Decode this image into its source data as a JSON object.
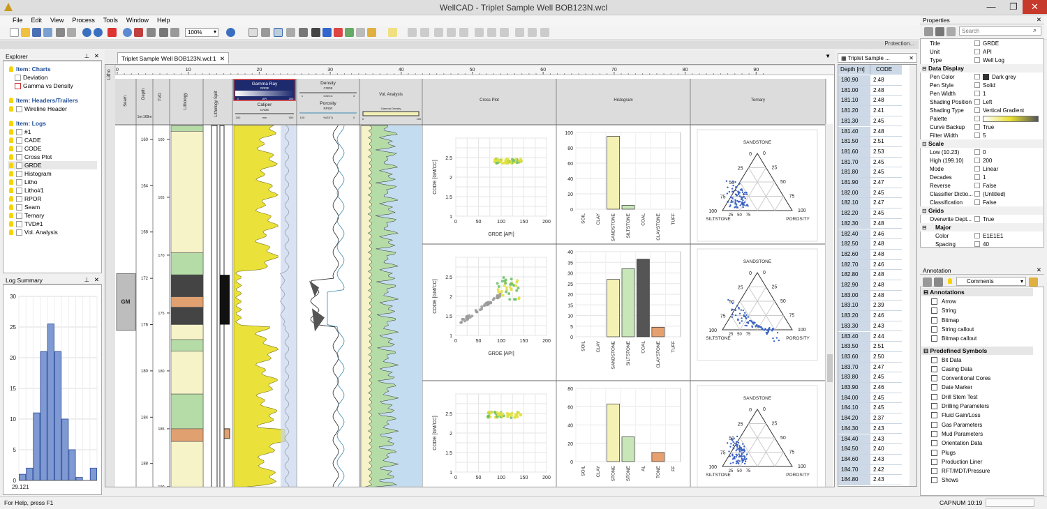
{
  "app": {
    "title": "WellCAD - Triplet Sample Well BOB123N.wcl",
    "minimize": "—",
    "maximize": "❐",
    "close": "✕"
  },
  "menu": [
    "File",
    "Edit",
    "View",
    "Process",
    "Tools",
    "Window",
    "Help"
  ],
  "toolbar": {
    "zoom": "100%"
  },
  "protection": "Protection...",
  "explorer": {
    "title": "Explorer",
    "charts_header": "Item: Charts",
    "charts": [
      "Deviation",
      "Gamma vs Density"
    ],
    "headers_header": "Item: Headers/Trailers",
    "headers": [
      "Wireline Header"
    ],
    "logs_header": "Item: Logs",
    "logs": [
      "#1",
      "CADE",
      "CODE",
      "Cross Plot",
      "GRDE",
      "Histogram",
      "Litho",
      "Litho#1",
      "RPOR",
      "Seam",
      "Ternary",
      "TVD#1",
      "Vol. Analysis"
    ]
  },
  "log_summary": {
    "title": "Log Summary",
    "yticks": [
      "30",
      "25",
      "20",
      "15",
      "10",
      "5",
      "0"
    ],
    "xlabel": "29.121",
    "bars": [
      1,
      2,
      11,
      21,
      25.5,
      21,
      10,
      5,
      0.5,
      0,
      2
    ]
  },
  "doc_tab": {
    "label": "Triplet Sample Well BOB123N.wcl:1",
    "close": "✕"
  },
  "ruler": {
    "ticks": [
      "0",
      "10",
      "20",
      "30",
      "40",
      "50",
      "60",
      "70",
      "80",
      "90"
    ]
  },
  "track_headers": {
    "seam": "Seam",
    "depth": "Depth",
    "depth_unit": "1m:169m",
    "tvd": "TVD",
    "lithology": "Lithology",
    "litho_split": "Lithology Split",
    "gamma_ray": "Gamma Ray",
    "gamma_sub": "GRDE",
    "gamma_range": [
      "0",
      "API",
      "200"
    ],
    "caliper": "Caliper",
    "caliper_sub": "CADE",
    "caliper_range": [
      "300",
      "mm",
      "500"
    ],
    "density": "Density",
    "density_sub": "CODE",
    "density_range": [
      "1",
      "GM/CC",
      "3"
    ],
    "porosity": "Porosity",
    "porosity_sub": "RPOR",
    "porosity_range": [
      "100",
      "%(SST)",
      "0"
    ],
    "vol_analysis": "Vol. Analysis",
    "vol_sub": "Gamma Density",
    "vol_range": [
      "0",
      "100"
    ],
    "cross_plot": "Cross Plot",
    "histogram": "Histogram",
    "ternary": "Ternary",
    "side_label": "Litho"
  },
  "depth_ticks": [
    "160",
    "164",
    "168",
    "172",
    "176",
    "180",
    "184",
    "188"
  ],
  "tvd_ticks": [
    "160",
    "165",
    "170",
    "175",
    "180",
    "185",
    "190"
  ],
  "seam_label": "GM",
  "chart_data": [
    {
      "type": "scatter",
      "xlabel": "GRDE [API]",
      "ylabel": "CODE [GM/CC]",
      "xlim": [
        0,
        200
      ],
      "ylim": [
        1,
        3
      ],
      "xticks": [
        "0",
        "50",
        "100",
        "150",
        "200"
      ],
      "yticks": [
        "1",
        "1.5",
        "2",
        "2.5"
      ]
    },
    {
      "type": "bar",
      "ylim": [
        0,
        100
      ],
      "categories": [
        "SOIL",
        "CLAY",
        "SANDSTONE",
        "SILTSTONE",
        "COAL",
        "CLAYSTONE",
        "TUFF"
      ],
      "values": [
        0,
        0,
        95,
        5,
        0,
        0,
        0
      ],
      "yticks": [
        "100",
        "80",
        "60",
        "40",
        "20",
        "0"
      ]
    },
    {
      "type": "ternary",
      "top": "SANDSTONE",
      "left": "SILTSTONE",
      "right": "POROSITY",
      "ticks": [
        "0",
        "25",
        "50",
        "75",
        "100"
      ]
    },
    {
      "type": "bar",
      "ylim": [
        0,
        40
      ],
      "categories": [
        "SOIL",
        "CLAY",
        "SANDSTONE",
        "SILTSTONE",
        "COAL",
        "CLAYSTONE",
        "TUFF"
      ],
      "values": [
        0,
        0,
        27,
        32,
        36.5,
        4.5,
        0
      ],
      "yticks": [
        "40",
        "35",
        "30",
        "25",
        "20",
        "15",
        "10",
        "5",
        "0"
      ]
    },
    {
      "type": "bar",
      "ylim": [
        0,
        80
      ],
      "categories": [
        "SOIL",
        "CLAY",
        "STONE",
        "STONE",
        "AL",
        "TONE",
        "FF"
      ],
      "values": [
        0,
        0,
        63,
        27,
        0,
        10,
        0
      ],
      "yticks": [
        "80",
        "60",
        "40",
        "20",
        "0"
      ]
    }
  ],
  "data_table": {
    "tab": "Triplet Sample ...",
    "close": "✕",
    "col1": "Depth [m]",
    "col2": "CODE",
    "rows": [
      [
        "180.90",
        "2.48"
      ],
      [
        "181.00",
        "2.48"
      ],
      [
        "181.10",
        "2.48"
      ],
      [
        "181.20",
        "2.41"
      ],
      [
        "181.30",
        "2.45"
      ],
      [
        "181.40",
        "2.48"
      ],
      [
        "181.50",
        "2.51"
      ],
      [
        "181.60",
        "2.53"
      ],
      [
        "181.70",
        "2.45"
      ],
      [
        "181.80",
        "2.45"
      ],
      [
        "181.90",
        "2.47"
      ],
      [
        "182.00",
        "2.45"
      ],
      [
        "182.10",
        "2.47"
      ],
      [
        "182.20",
        "2.45"
      ],
      [
        "182.30",
        "2.48"
      ],
      [
        "182.40",
        "2.46"
      ],
      [
        "182.50",
        "2.48"
      ],
      [
        "182.60",
        "2.48"
      ],
      [
        "182.70",
        "2.46"
      ],
      [
        "182.80",
        "2.48"
      ],
      [
        "182.90",
        "2.48"
      ],
      [
        "183.00",
        "2.48"
      ],
      [
        "183.10",
        "2.39"
      ],
      [
        "183.20",
        "2.46"
      ],
      [
        "183.30",
        "2.43"
      ],
      [
        "183.40",
        "2.44"
      ],
      [
        "183.50",
        "2.51"
      ],
      [
        "183.60",
        "2.50"
      ],
      [
        "183.70",
        "2.47"
      ],
      [
        "183.80",
        "2.45"
      ],
      [
        "183.90",
        "2.46"
      ],
      [
        "184.00",
        "2.45"
      ],
      [
        "184.10",
        "2.45"
      ],
      [
        "184.20",
        "2.37"
      ],
      [
        "184.30",
        "2.43"
      ],
      [
        "184.40",
        "2.43"
      ],
      [
        "184.50",
        "2.40"
      ],
      [
        "184.60",
        "2.43"
      ],
      [
        "184.70",
        "2.42"
      ],
      [
        "184.80",
        "2.43"
      ]
    ]
  },
  "properties": {
    "title": "Properties",
    "search_placeholder": "Search",
    "rows": [
      [
        "Title",
        "GRDE"
      ],
      [
        "Unit",
        "API"
      ],
      [
        "Type",
        "Well Log"
      ]
    ],
    "data_display_header": "Data Display",
    "data_display": [
      [
        "Pen Color",
        "Dark grey"
      ],
      [
        "Pen Style",
        "Solid"
      ],
      [
        "Pen Width",
        "1"
      ],
      [
        "Shading Position",
        "Left"
      ],
      [
        "Shading Type",
        "Vertical Gradient"
      ],
      [
        "Palette",
        ""
      ],
      [
        "Curve Backup",
        "True"
      ],
      [
        "Filter Width",
        "5"
      ]
    ],
    "scale_header": "Scale",
    "scale": [
      [
        "Low (10.23)",
        "0"
      ],
      [
        "High (199.10)",
        "200"
      ],
      [
        "Mode",
        "Linear"
      ],
      [
        "Decades",
        "1"
      ],
      [
        "Reverse",
        "False"
      ],
      [
        "Classifier Dictio...",
        "(Untitled)"
      ],
      [
        "Classification",
        "False"
      ]
    ],
    "grids_header": "Grids",
    "grids": [
      [
        "Overwrite Dept...",
        "True"
      ]
    ],
    "major_header": "Major",
    "major": [
      [
        "Color",
        "E1E1E1"
      ],
      [
        "Spacing",
        "40"
      ]
    ]
  },
  "annotation": {
    "title": "Annotation",
    "dropdown": "Comments",
    "annotations_header": "Annotations",
    "annotations": [
      "Arrow",
      "String",
      "Bitmap",
      "String callout",
      "Bitmap callout"
    ],
    "symbols_header": "Predefined Symbols",
    "symbols": [
      "Bit Data",
      "Casing Data",
      "Conventional Cores",
      "Date Marker",
      "Drill Stem Test",
      "Drilling Parameters",
      "Fluid Gain/Loss",
      "Gas Parameters",
      "Mud Parameters",
      "Orientation Data",
      "Plugs",
      "Production Liner",
      "RFT/MDT/Pressure",
      "Shows"
    ]
  },
  "status": {
    "help": "For Help, press F1",
    "cap": "CAP",
    "num": "NUM",
    "time": "10:19"
  }
}
